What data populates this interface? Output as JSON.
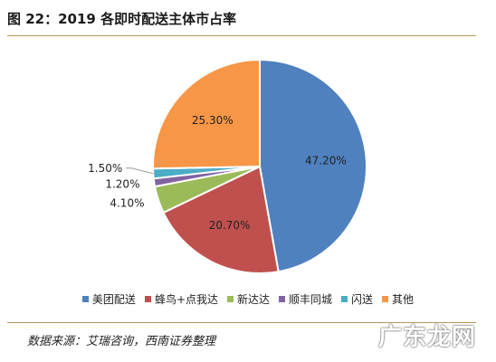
{
  "header": {
    "title": "图 22：2019 各即时配送主体市占率"
  },
  "chart_data": {
    "type": "pie",
    "title": "图 22：2019 各即时配送主体市占率",
    "categories": [
      "美团配送",
      "蜂鸟+点我达",
      "新达达",
      "顺丰同城",
      "闪送",
      "其他"
    ],
    "values": [
      47.2,
      20.7,
      4.1,
      1.2,
      1.5,
      25.3
    ],
    "labels": [
      "47.20%",
      "20.70%",
      "4.10%",
      "1.20%",
      "1.50%",
      "25.30%"
    ],
    "colors": [
      "#4e81bd",
      "#c0504d",
      "#9bbb59",
      "#8064a2",
      "#4bacc6",
      "#f79646"
    ],
    "legend": "bottom",
    "start": "12 o'clock",
    "direction": "clockwise"
  },
  "footer": {
    "source": "数据来源：艾瑞咨询，西南证券整理",
    "watermark": "广东龙网"
  }
}
